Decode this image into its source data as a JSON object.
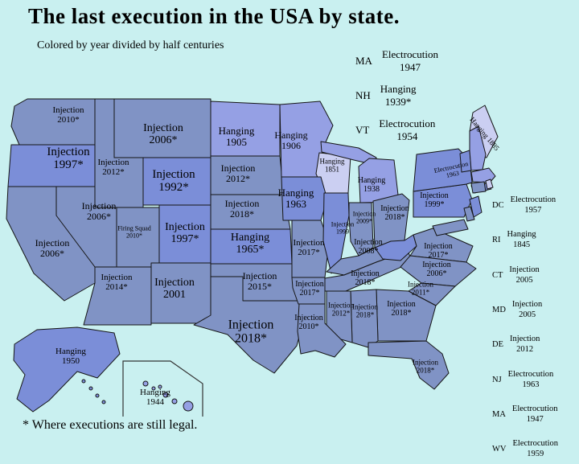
{
  "title": "The last execution in the USA by state.",
  "subtitle": "Colored by year divided by half centuries",
  "footnote": "* Where executions are still legal.",
  "colors": {
    "background": "#c9f0f0",
    "half_century": {
      "1850-1899": "#cbcff2",
      "1900-1949": "#95a0e4",
      "1950-1999": "#7b8ed8",
      "2000-present": "#8093c5"
    }
  },
  "map": {
    "states": [
      {
        "id": "WA",
        "method": "Injection",
        "year": "2010*"
      },
      {
        "id": "OR",
        "method": "Injection",
        "year": "1997*"
      },
      {
        "id": "CA",
        "method": "Injection",
        "year": "2006*"
      },
      {
        "id": "NV",
        "method": "Injection",
        "year": "2006*"
      },
      {
        "id": "ID",
        "method": "Injection",
        "year": "2012*"
      },
      {
        "id": "MT",
        "method": "Injection",
        "year": "2006*"
      },
      {
        "id": "WY",
        "method": "Injection",
        "year": "1992*"
      },
      {
        "id": "UT",
        "method": "Firing Squad",
        "year": "2010*"
      },
      {
        "id": "CO",
        "method": "Injection",
        "year": "1997*"
      },
      {
        "id": "AZ",
        "method": "Injection",
        "year": "2014*"
      },
      {
        "id": "NM",
        "method": "Injection",
        "year": "2001"
      },
      {
        "id": "ND",
        "method": "Hanging",
        "year": "1905"
      },
      {
        "id": "SD",
        "method": "Injection",
        "year": "2012*"
      },
      {
        "id": "NE",
        "method": "Injection",
        "year": "2018*"
      },
      {
        "id": "KS",
        "method": "Hanging",
        "year": "1965*"
      },
      {
        "id": "OK",
        "method": "Injection",
        "year": "2015*"
      },
      {
        "id": "TX",
        "method": "Injection",
        "year": "2018*"
      },
      {
        "id": "MN",
        "method": "Hanging",
        "year": "1906"
      },
      {
        "id": "IA",
        "method": "Hanging",
        "year": "1963"
      },
      {
        "id": "MO",
        "method": "Injection",
        "year": "2017*"
      },
      {
        "id": "AR",
        "method": "Injection",
        "year": "2017*"
      },
      {
        "id": "LA",
        "method": "Injection",
        "year": "2010*"
      },
      {
        "id": "WI",
        "method": "Hanging",
        "year": "1851"
      },
      {
        "id": "MI",
        "method": "Hanging",
        "year": "1938"
      },
      {
        "id": "IL",
        "method": "Injection",
        "year": "1999"
      },
      {
        "id": "IN",
        "method": "Injection",
        "year": "2009*"
      },
      {
        "id": "OH",
        "method": "Injection",
        "year": "2018*"
      },
      {
        "id": "KY",
        "method": "Injection",
        "year": "2008*"
      },
      {
        "id": "TN",
        "method": "Injection",
        "year": "2018*"
      },
      {
        "id": "MS",
        "method": "Injection",
        "year": "2012*"
      },
      {
        "id": "AL",
        "method": "Injection",
        "year": "2018*"
      },
      {
        "id": "GA",
        "method": "Injection",
        "year": "2018*"
      },
      {
        "id": "FL",
        "method": "Injection",
        "year": "2018*"
      },
      {
        "id": "SC",
        "method": "Injection",
        "year": "2011*"
      },
      {
        "id": "NC",
        "method": "Injection",
        "year": "2006*"
      },
      {
        "id": "VA",
        "method": "Injection",
        "year": "2017*"
      },
      {
        "id": "PA",
        "method": "Injection",
        "year": "1999*"
      },
      {
        "id": "NY",
        "method": "Electrocution",
        "year": "1963"
      },
      {
        "id": "ME",
        "method": "Hanging",
        "year": "1885"
      },
      {
        "id": "AK",
        "method": "Hanging",
        "year": "1950"
      },
      {
        "id": "HI",
        "method": "Hanging",
        "year": "1944"
      }
    ]
  },
  "side_lists": {
    "upper": [
      {
        "abbr": "MA",
        "method": "Electrocution",
        "year": "1947"
      },
      {
        "abbr": "NH",
        "method": "Hanging",
        "year": "1939*"
      },
      {
        "abbr": "VT",
        "method": "Electrocution",
        "year": "1954"
      }
    ],
    "right": [
      {
        "abbr": "DC",
        "method": "Electrocution",
        "year": "1957"
      },
      {
        "abbr": "RI",
        "method": "Hanging",
        "year": "1845"
      },
      {
        "abbr": "CT",
        "method": "Injection",
        "year": "2005"
      },
      {
        "abbr": "MD",
        "method": "Injection",
        "year": "2005"
      },
      {
        "abbr": "DE",
        "method": "Injection",
        "year": "2012"
      },
      {
        "abbr": "NJ",
        "method": "Electrocution",
        "year": "1963"
      },
      {
        "abbr": "MA",
        "method": "Electrocution",
        "year": "1947"
      },
      {
        "abbr": "WV",
        "method": "Electrocution",
        "year": "1959"
      }
    ]
  }
}
